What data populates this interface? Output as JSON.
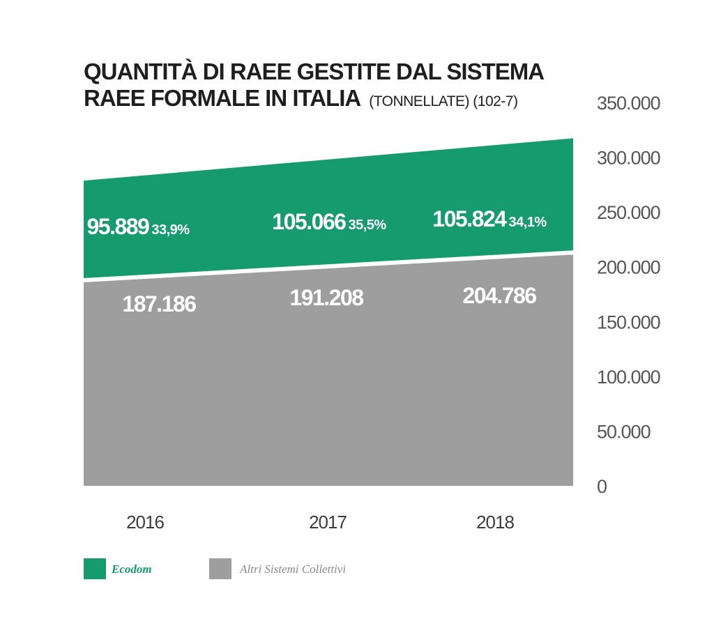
{
  "chart_data": {
    "type": "area",
    "title_line1": "QUANTITÀ DI RAEE GESTITE DAL SISTEMA",
    "title_line2": "RAEE FORMALE IN ITALIA",
    "title_suffix": "(TONNELLATE) (102-7)",
    "categories": [
      "2016",
      "2017",
      "2018"
    ],
    "yticks": [
      "0",
      "50.000",
      "100.000",
      "150.000",
      "200.000",
      "250.000",
      "300.000",
      "350.000"
    ],
    "ytick_values": [
      0,
      50000,
      100000,
      150000,
      200000,
      250000,
      300000,
      350000
    ],
    "ylim": [
      0,
      350000
    ],
    "stacked": true,
    "series": [
      {
        "name": "Altri Sistemi Collettivi",
        "color": "#9e9e9e",
        "values": [
          187186,
          191208,
          204786
        ],
        "labels": [
          "187.186",
          "191.208",
          "204.786"
        ]
      },
      {
        "name": "Ecodom",
        "color": "#169b6e",
        "values": [
          95889,
          105066,
          105824
        ],
        "labels": [
          "95.889",
          "105.066",
          "105.824"
        ],
        "percent_labels": [
          "33,9%",
          "35,5%",
          "34,1%"
        ]
      }
    ],
    "legend": "bottom-left"
  }
}
